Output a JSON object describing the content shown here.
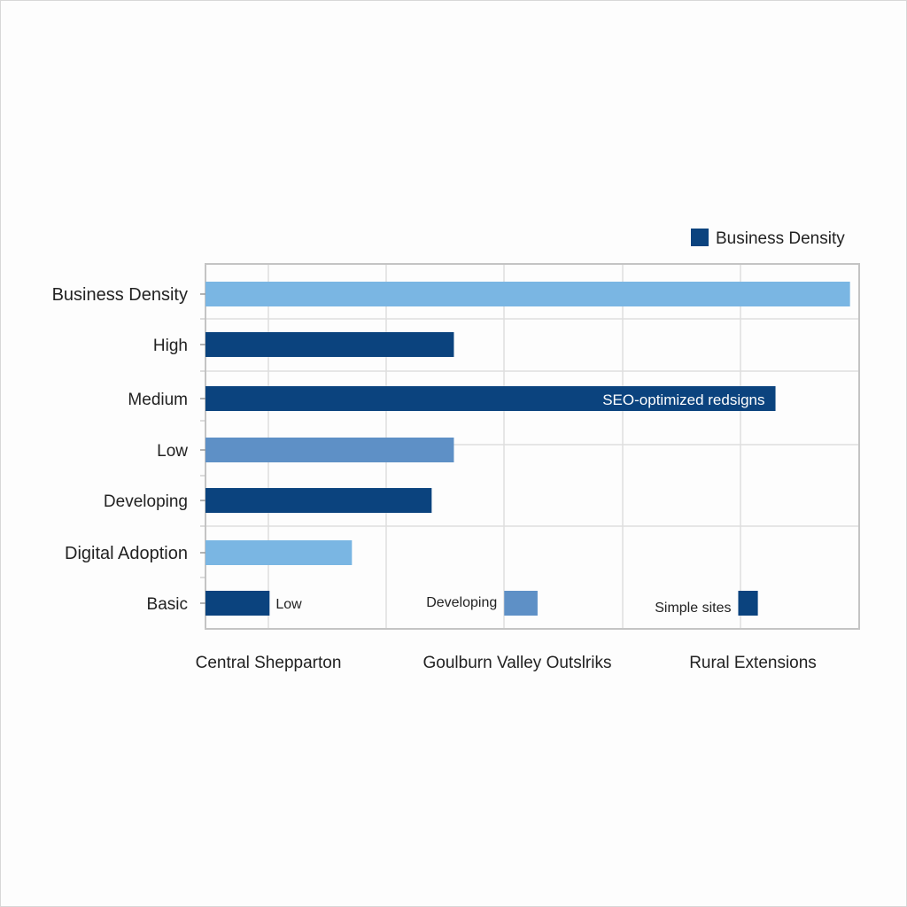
{
  "chart_data": {
    "type": "bar",
    "orientation": "horizontal",
    "legend": {
      "label": "Business Density",
      "color": "#0b437e",
      "placement": "top-right"
    },
    "y_categories": [
      "Business Density",
      "High",
      "Medium",
      "Low",
      "Developing",
      "Digital Adoption",
      "Basic"
    ],
    "x_tick_labels": [
      "Central Shepparton",
      "Goulburn Valley Outslriks",
      "Rural Extensions"
    ],
    "xlim": [
      0,
      100
    ],
    "grid": true,
    "bars": [
      {
        "category": "Business Density",
        "start": 0,
        "end": 98.6,
        "color": "#7ab6e3"
      },
      {
        "category": "High",
        "start": 0,
        "end": 38,
        "color": "#0b437e"
      },
      {
        "category": "Medium",
        "start": 0,
        "end": 87.2,
        "color": "#0b437e",
        "label": "SEO-optimized redsigns"
      },
      {
        "category": "Low",
        "start": 0,
        "end": 38,
        "color": "#5e90c6"
      },
      {
        "category": "Developing",
        "start": 0,
        "end": 34.6,
        "color": "#0b437e"
      },
      {
        "category": "Digital Adoption",
        "start": 0,
        "end": 22.4,
        "color": "#7ab6e3"
      },
      {
        "category": "Basic",
        "start": 0,
        "end": 9.8,
        "color": "#0b437e",
        "label": "Low",
        "label_side": "right"
      },
      {
        "category": "Basic",
        "start": 45.7,
        "end": 50.8,
        "color": "#5e90c6",
        "label": "Developing",
        "label_side": "left"
      },
      {
        "category": "Basic",
        "start": 81.5,
        "end": 84.5,
        "color": "#0b437e",
        "label": "Simple sites",
        "label_side": "left"
      }
    ]
  }
}
